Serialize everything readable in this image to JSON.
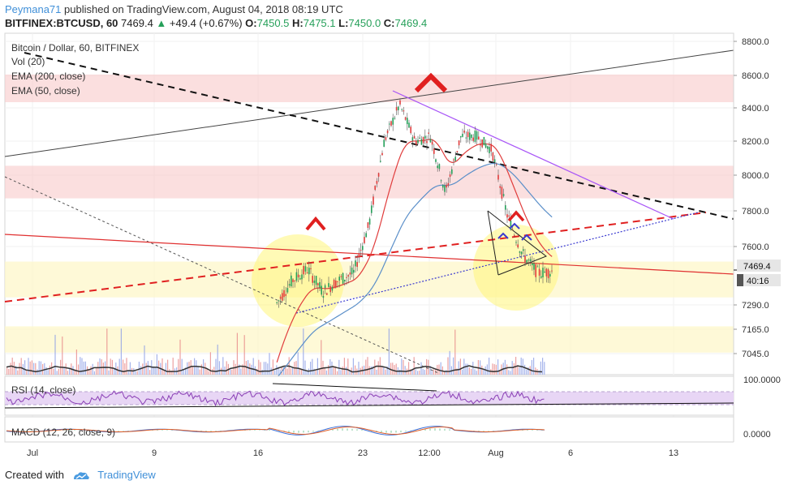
{
  "header": {
    "user": "Peymana71",
    "published_text": "published on TradingView.com, August 04, 2018 08:19 UTC",
    "symbol": "BITFINEX:BTCUSD, 60",
    "last": "7469.4",
    "change_arrow": "▲",
    "change": "+49.4 (+0.67%)",
    "open_label": "O:",
    "open": "7450.5",
    "high_label": "H:",
    "high": "7475.1",
    "low_label": "L:",
    "low": "7450.0",
    "close_label": "C:",
    "close": "7469.4"
  },
  "legend": {
    "title": "Bitcoin / Dollar, 60, BITFINEX",
    "vol": "Vol (20)",
    "ema200": "EMA (200, close)",
    "ema50": "EMA (50, close)"
  },
  "panes": {
    "rsi_label": "RSI (14, close)",
    "macd_label": "MACD (12, 26, close, 9)",
    "rsi_axis_top": "100.0000",
    "macd_axis": "0.0000"
  },
  "price_tag": "7469.4",
  "countdown_tag": "40:16",
  "footer": {
    "created_with": "Created with",
    "brand": "TradingView"
  },
  "colors": {
    "up": "#26a05a",
    "down": "#e03c3c",
    "accent": "#3f8fd8",
    "ema50": "#e03c3c",
    "ema200": "#5b8fc9",
    "supply_zone": "#f8c9c9",
    "demand_zone": "#fdf6c6",
    "highlight_circle": "#fff67a",
    "rsi_fill": "#e8d6f5"
  },
  "chart_data": {
    "type": "line",
    "title": "Bitcoin / Dollar, 60, BITFINEX",
    "x_ticks": [
      "Jul",
      "9",
      "16",
      "23",
      "12:00",
      "Aug",
      "6",
      "13"
    ],
    "y_ticks": [
      8800.0,
      8600.0,
      8400.0,
      8200.0,
      8000.0,
      7800.0,
      7600.0,
      7290.0,
      7165.0,
      7045.0
    ],
    "ylim": [
      6920,
      8850
    ],
    "series": [
      {
        "name": "BTCUSD",
        "points": [
          [
            "Jul 17",
            7300
          ],
          [
            "Jul 18",
            7420
          ],
          [
            "Jul 19",
            7480
          ],
          [
            "Jul 20",
            7360
          ],
          [
            "Jul 21",
            7420
          ],
          [
            "Jul 22",
            7460
          ],
          [
            "Jul 23",
            7720
          ],
          [
            "Jul 24",
            8200
          ],
          [
            "Jul 25",
            8420
          ],
          [
            "Jul 26",
            8200
          ],
          [
            "Jul 27",
            8230
          ],
          [
            "Jul 28",
            7900
          ],
          [
            "Jul 29",
            8230
          ],
          [
            "Jul 30",
            8230
          ],
          [
            "Jul 31",
            8150
          ],
          [
            "Aug 1",
            7780
          ],
          [
            "Aug 2",
            7560
          ],
          [
            "Aug 3",
            7460
          ],
          [
            "Aug 4",
            7469.4
          ]
        ]
      }
    ],
    "zones": [
      {
        "kind": "supply",
        "from": 8435,
        "to": 8605
      },
      {
        "kind": "supply",
        "from": 7870,
        "to": 8055
      },
      {
        "kind": "demand",
        "from": 7330,
        "to": 7520
      },
      {
        "kind": "demand",
        "from": 7050,
        "to": 7180
      }
    ],
    "last_price": 7469.4,
    "grid": true
  }
}
